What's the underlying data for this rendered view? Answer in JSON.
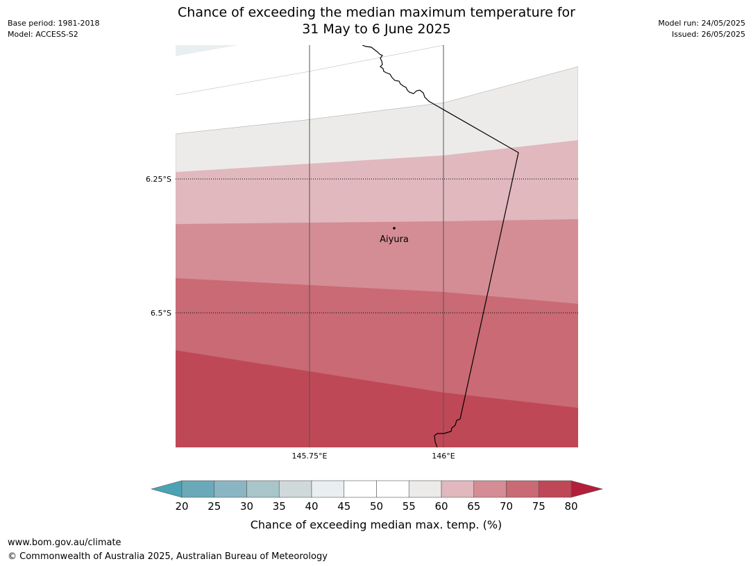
{
  "header": {
    "title_line1": "Chance of exceeding the median maximum temperature for",
    "title_line2": "31 May to 6 June 2025",
    "base_period": "Base period: 1981-2018",
    "model": "Model: ACCESS-S2",
    "model_run": "Model run: 24/05/2025",
    "issued": "Issued: 26/05/2025"
  },
  "map": {
    "lat_labels": [
      "6.25°S",
      "6.5°S"
    ],
    "lon_labels": [
      "145.75°E",
      "146°E"
    ],
    "place": "Aiyura",
    "band_colors": [
      "#e9eef1",
      "#ffffff",
      "#ecebea",
      "#e0b8bd",
      "#d48d95",
      "#c96a74",
      "#bf4856"
    ]
  },
  "colorbar": {
    "ticks": [
      "20",
      "25",
      "30",
      "35",
      "40",
      "45",
      "50",
      "55",
      "60",
      "65",
      "70",
      "75",
      "80"
    ],
    "colors": [
      "#6aaab8",
      "#8ab6c4",
      "#a8c5ca",
      "#d0d9da",
      "#e9eef1",
      "#ffffff",
      "#ffffff",
      "#ecebea",
      "#e0b8bd",
      "#d48d95",
      "#c96a74",
      "#bf4856"
    ],
    "under_color": "#4ba3b3",
    "over_color": "#b31e3a",
    "label": "Chance of exceeding median max. temp. (%)"
  },
  "footer": {
    "site": "www.bom.gov.au/climate",
    "copyright": "© Commonwealth of Australia 2025, Australian Bureau of Meteorology"
  }
}
